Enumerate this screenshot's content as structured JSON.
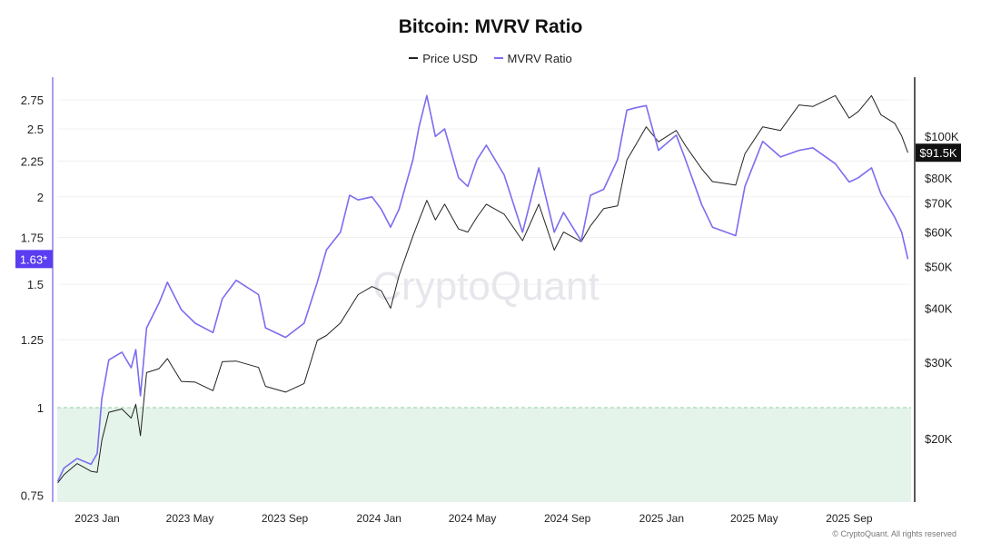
{
  "chart_data": {
    "type": "line",
    "title": "Bitcoin: MVRV Ratio",
    "legend_position": "top-center",
    "grid": true,
    "x_tick_labels": [
      "2023 Jan",
      "2023 May",
      "2023 Sep",
      "2024 Jan",
      "2024 May",
      "2024 Sep",
      "2025 Jan",
      "2025 May",
      "2025 Sep"
    ],
    "x_ticks": [
      "2023-01-01",
      "2023-05-01",
      "2023-09-01",
      "2024-01-01",
      "2024-05-01",
      "2024-09-01",
      "2025-01-01",
      "2025-05-01",
      "2025-09-01"
    ],
    "xlim": [
      "2022-11-11",
      "2025-11-20"
    ],
    "left_axis": {
      "scale": "log",
      "ylim": [
        0.72,
        2.9
      ],
      "tick_labels": [
        "0.75",
        "1",
        "1.25",
        "1.5",
        "1.75",
        "2",
        "2.25",
        "2.5",
        "2.75"
      ],
      "ticks": [
        0.75,
        1,
        1.25,
        1.5,
        1.75,
        2,
        2.25,
        2.5,
        2.75
      ]
    },
    "right_axis": {
      "scale": "log",
      "unit": "USD",
      "tick_labels": [
        "$20K",
        "$30K",
        "$40K",
        "$50K",
        "$60K",
        "$70K",
        "$80K",
        "$100K"
      ],
      "ticks": [
        20000,
        30000,
        40000,
        50000,
        60000,
        70000,
        80000,
        100000
      ]
    },
    "reference_line": {
      "value": 1,
      "shade_below": true,
      "color": "#8fd19e"
    },
    "current_labels": {
      "mvrv": "1.63*",
      "price": "$91.5K"
    },
    "dates": [
      "2022-11-11",
      "2022-11-19",
      "2022-12-06",
      "2022-12-24",
      "2023-01-01",
      "2023-01-07",
      "2023-01-16",
      "2023-02-02",
      "2023-02-14",
      "2023-02-20",
      "2023-02-26",
      "2023-03-06",
      "2023-03-22",
      "2023-04-02",
      "2023-04-20",
      "2023-05-08",
      "2023-05-31",
      "2023-06-12",
      "2023-06-30",
      "2023-07-29",
      "2023-08-07",
      "2023-09-02",
      "2023-09-26",
      "2023-10-13",
      "2023-10-25",
      "2023-11-12",
      "2023-11-24",
      "2023-12-05",
      "2023-12-23",
      "2024-01-04",
      "2024-01-16",
      "2024-01-27",
      "2024-02-14",
      "2024-02-22",
      "2024-03-03",
      "2024-03-14",
      "2024-03-26",
      "2024-04-13",
      "2024-04-25",
      "2024-05-07",
      "2024-05-19",
      "2024-06-11",
      "2024-07-05",
      "2024-07-26",
      "2024-08-15",
      "2024-08-27",
      "2024-09-19",
      "2024-10-01",
      "2024-10-18",
      "2024-11-05",
      "2024-11-17",
      "2024-11-28",
      "2024-12-12",
      "2024-12-28",
      "2025-01-20",
      "2025-02-01",
      "2025-02-22",
      "2025-03-08",
      "2025-04-07",
      "2025-04-19",
      "2025-05-12",
      "2025-06-04",
      "2025-06-28",
      "2025-07-16",
      "2025-08-14",
      "2025-09-01",
      "2025-09-13",
      "2025-09-30",
      "2025-10-12",
      "2025-10-30",
      "2025-11-08",
      "2025-11-16"
    ],
    "series": [
      {
        "name": "Price USD",
        "axis": "right",
        "color": "#222222",
        "values": [
          15800,
          16500,
          17500,
          16800,
          16700,
          19800,
          23000,
          23400,
          22300,
          24000,
          20300,
          28400,
          29000,
          30600,
          27100,
          27000,
          25800,
          30100,
          30200,
          29200,
          26400,
          25600,
          26800,
          33700,
          34600,
          37000,
          40000,
          43000,
          44900,
          43900,
          40000,
          47600,
          58700,
          64000,
          71000,
          64000,
          69600,
          61000,
          60000,
          65000,
          69600,
          66000,
          57300,
          69600,
          54500,
          60000,
          57000,
          62000,
          68000,
          69000,
          88000,
          95000,
          105000,
          97000,
          103000,
          95000,
          84000,
          78500,
          77000,
          91000,
          105000,
          103000,
          118000,
          117000,
          124000,
          110000,
          114000,
          124000,
          112000,
          107000,
          100000,
          91500
        ]
      },
      {
        "name": "MVRV Ratio",
        "axis": "left",
        "color": "#7b6cf0",
        "values": [
          0.785,
          0.82,
          0.846,
          0.83,
          0.86,
          1.03,
          1.17,
          1.2,
          1.14,
          1.21,
          1.04,
          1.3,
          1.41,
          1.51,
          1.38,
          1.32,
          1.28,
          1.43,
          1.52,
          1.45,
          1.3,
          1.26,
          1.32,
          1.51,
          1.68,
          1.78,
          2.01,
          1.98,
          2.0,
          1.92,
          1.81,
          1.92,
          2.26,
          2.52,
          2.79,
          2.44,
          2.5,
          2.13,
          2.07,
          2.26,
          2.37,
          2.15,
          1.78,
          2.2,
          1.78,
          1.9,
          1.73,
          2.01,
          2.05,
          2.26,
          2.66,
          2.68,
          2.7,
          2.33,
          2.45,
          2.26,
          1.95,
          1.81,
          1.76,
          2.07,
          2.4,
          2.28,
          2.33,
          2.35,
          2.23,
          2.1,
          2.13,
          2.2,
          2.02,
          1.87,
          1.78,
          1.63
        ]
      }
    ]
  },
  "watermark": "CryptoQuant",
  "footer": "© CryptoQuant. All rights reserved"
}
